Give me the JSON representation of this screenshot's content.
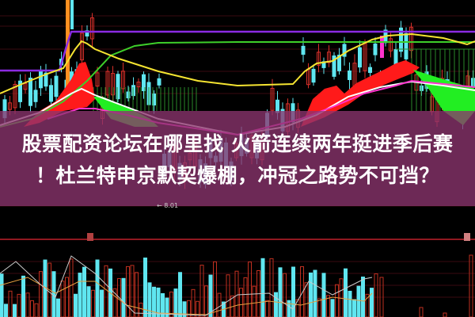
{
  "headline": {
    "line1": "股票配资论坛在哪里找 火箭连续两年挺进季后赛",
    "line2": "！杜兰特申京默契爆棚，冲冠之路势不可挡？"
  },
  "chart": {
    "low_price_label": "← 8.01",
    "colors": {
      "background": "#000000",
      "up_candle": "#d8302a",
      "down_candle": "#5fe6f0",
      "ma_yellow": "#f5e431",
      "ma_green": "#3ecf2a",
      "ma_purple": "#8a2be2",
      "ribbon_red": "#ff1a1a",
      "ribbon_green": "#22ee22",
      "overlay": "#8c346e"
    }
  }
}
